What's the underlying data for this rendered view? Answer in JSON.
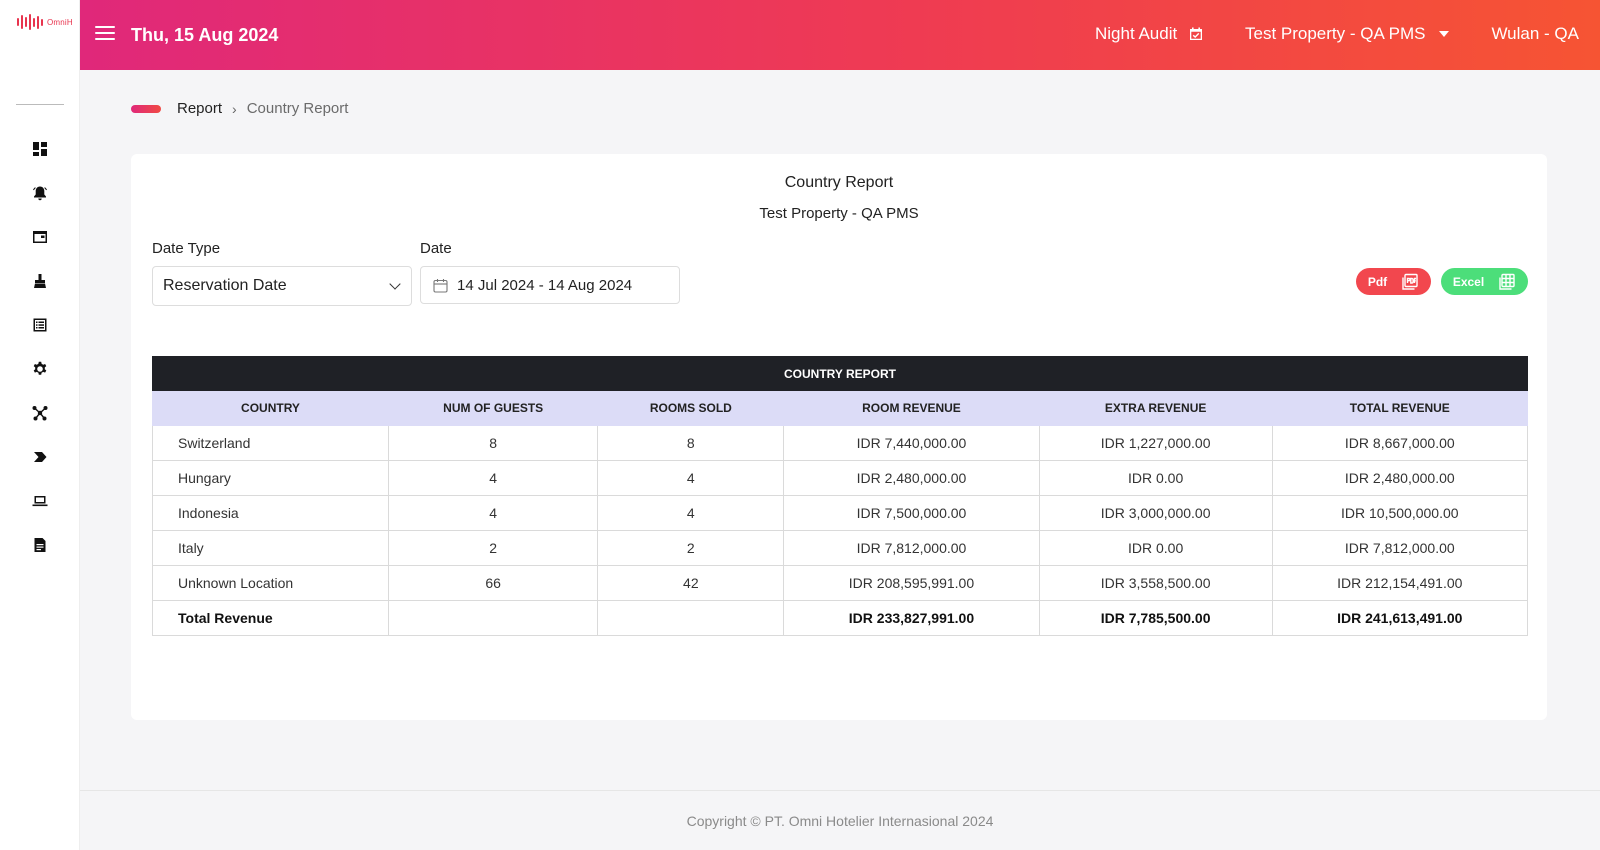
{
  "app": {
    "logo_text": "OmniH"
  },
  "header": {
    "date": "Thu, 15 Aug 2024",
    "night_audit": "Night Audit",
    "property": "Test Property - QA PMS",
    "user": "Wulan - QA"
  },
  "sidebar": {
    "icons": [
      "dashboard-icon",
      "alarm-bell-icon",
      "window-icon",
      "cleaning-icon",
      "list-icon",
      "gear-icon",
      "network-icon",
      "tag-icon",
      "laptop-icon",
      "document-icon"
    ]
  },
  "breadcrumb": {
    "root": "Report",
    "current": "Country Report"
  },
  "report": {
    "title": "Country Report",
    "subtitle": "Test Property - QA PMS",
    "date_type_label": "Date Type",
    "date_type_value": "Reservation Date",
    "date_label": "Date",
    "date_range": "14 Jul 2024 - 14 Aug 2024",
    "pdf_label": "Pdf",
    "excel_label": "Excel"
  },
  "table": {
    "title": "COUNTRY REPORT",
    "columns": [
      "COUNTRY",
      "NUM OF GUESTS",
      "ROOMS SOLD",
      "ROOM REVENUE",
      "EXTRA REVENUE",
      "TOTAL REVENUE"
    ],
    "rows": [
      [
        "Switzerland",
        "8",
        "8",
        "IDR 7,440,000.00",
        "IDR 1,227,000.00",
        "IDR 8,667,000.00"
      ],
      [
        "Hungary",
        "4",
        "4",
        "IDR 2,480,000.00",
        "IDR 0.00",
        "IDR 2,480,000.00"
      ],
      [
        "Indonesia",
        "4",
        "4",
        "IDR 7,500,000.00",
        "IDR 3,000,000.00",
        "IDR 10,500,000.00"
      ],
      [
        "Italy",
        "2",
        "2",
        "IDR 7,812,000.00",
        "IDR 0.00",
        "IDR 7,812,000.00"
      ],
      [
        "Unknown Location",
        "66",
        "42",
        "IDR 208,595,991.00",
        "IDR 3,558,500.00",
        "IDR 212,154,491.00"
      ]
    ],
    "total": [
      "Total Revenue",
      "",
      "",
      "IDR 233,827,991.00",
      "IDR 7,785,500.00",
      "IDR 241,613,491.00"
    ]
  },
  "footer": {
    "copyright": "Copyright © PT. Omni Hotelier Internasional 2024"
  },
  "colors": {
    "header_start": "#e0287a",
    "header_end": "#f65433",
    "pdf": "#f2474e",
    "excel": "#4cde7a",
    "table_title_bg": "#1f2126",
    "table_head_bg": "#dcdcf7"
  }
}
